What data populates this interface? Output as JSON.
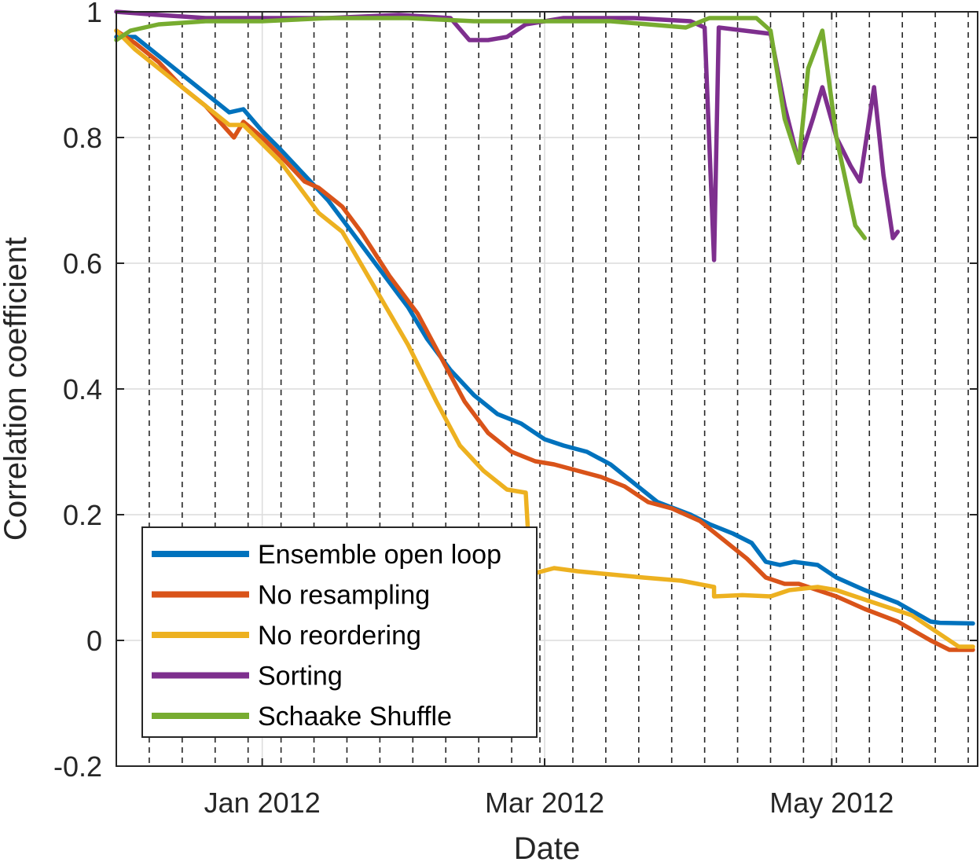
{
  "chart_data": {
    "type": "line",
    "title": "",
    "xlabel": "Date",
    "ylabel": "Correlation coefficient",
    "x_ticks": [
      {
        "label": "Jan 2012",
        "date": "2012-01-01"
      },
      {
        "label": "Mar 2012",
        "date": "2012-03-01"
      },
      {
        "label": "May 2012",
        "date": "2012-05-01"
      }
    ],
    "xlim": [
      "2011-12-01",
      "2012-05-31"
    ],
    "ylim": [
      -0.2,
      1.0
    ],
    "y_ticks": [
      {
        "value": -0.2,
        "label": "-0.2"
      },
      {
        "value": 0,
        "label": "0"
      },
      {
        "value": 0.2,
        "label": "0.2"
      },
      {
        "value": 0.4,
        "label": "0.4"
      },
      {
        "value": 0.6,
        "label": "0.6"
      },
      {
        "value": 0.8,
        "label": "0.8"
      },
      {
        "value": 1.0,
        "label": "1"
      }
    ],
    "grid": true,
    "legend_position": "bottom-left",
    "event_dates": [
      "2011-12-01",
      "2011-12-08",
      "2011-12-15",
      "2011-12-22",
      "2011-12-29",
      "2012-01-05",
      "2012-01-12",
      "2012-01-19",
      "2012-01-26",
      "2012-02-02",
      "2012-02-09",
      "2012-02-16",
      "2012-02-23",
      "2012-02-29",
      "2012-03-07",
      "2012-03-14",
      "2012-03-21",
      "2012-03-28",
      "2012-04-04",
      "2012-04-11",
      "2012-04-18",
      "2012-04-25",
      "2012-05-02",
      "2012-05-09",
      "2012-05-16",
      "2012-05-23",
      "2012-05-30"
    ],
    "series": [
      {
        "name": "Ensemble open loop",
        "color": "#0072BD",
        "points": [
          [
            "2011-12-01",
            0.96
          ],
          [
            "2011-12-05",
            0.96
          ],
          [
            "2011-12-10",
            0.93
          ],
          [
            "2011-12-15",
            0.9
          ],
          [
            "2011-12-20",
            0.87
          ],
          [
            "2011-12-25",
            0.84
          ],
          [
            "2011-12-28",
            0.845
          ],
          [
            "2012-01-01",
            0.81
          ],
          [
            "2012-01-05",
            0.78
          ],
          [
            "2012-01-10",
            0.74
          ],
          [
            "2012-01-15",
            0.7
          ],
          [
            "2012-01-20",
            0.65
          ],
          [
            "2012-01-25",
            0.6
          ],
          [
            "2012-02-01",
            0.53
          ],
          [
            "2012-02-05",
            0.48
          ],
          [
            "2012-02-10",
            0.43
          ],
          [
            "2012-02-15",
            0.39
          ],
          [
            "2012-02-20",
            0.36
          ],
          [
            "2012-02-25",
            0.345
          ],
          [
            "2012-03-01",
            0.32
          ],
          [
            "2012-03-05",
            0.31
          ],
          [
            "2012-03-10",
            0.3
          ],
          [
            "2012-03-15",
            0.28
          ],
          [
            "2012-03-20",
            0.25
          ],
          [
            "2012-03-25",
            0.22
          ],
          [
            "2012-04-01",
            0.2
          ],
          [
            "2012-04-05",
            0.185
          ],
          [
            "2012-04-10",
            0.17
          ],
          [
            "2012-04-14",
            0.155
          ],
          [
            "2012-04-17",
            0.125
          ],
          [
            "2012-04-20",
            0.12
          ],
          [
            "2012-04-23",
            0.125
          ],
          [
            "2012-04-28",
            0.12
          ],
          [
            "2012-05-02",
            0.1
          ],
          [
            "2012-05-08",
            0.08
          ],
          [
            "2012-05-15",
            0.06
          ],
          [
            "2012-05-22",
            0.03
          ],
          [
            "2012-05-24",
            0.028
          ],
          [
            "2012-05-31",
            0.027
          ]
        ]
      },
      {
        "name": "No resampling",
        "color": "#D95319",
        "points": [
          [
            "2011-12-01",
            0.97
          ],
          [
            "2011-12-05",
            0.95
          ],
          [
            "2011-12-10",
            0.92
          ],
          [
            "2011-12-15",
            0.88
          ],
          [
            "2011-12-20",
            0.85
          ],
          [
            "2011-12-26",
            0.8
          ],
          [
            "2011-12-28",
            0.825
          ],
          [
            "2012-01-01",
            0.8
          ],
          [
            "2012-01-05",
            0.77
          ],
          [
            "2012-01-10",
            0.73
          ],
          [
            "2012-01-13",
            0.72
          ],
          [
            "2012-01-18",
            0.69
          ],
          [
            "2012-01-22",
            0.65
          ],
          [
            "2012-01-28",
            0.58
          ],
          [
            "2012-02-03",
            0.52
          ],
          [
            "2012-02-08",
            0.45
          ],
          [
            "2012-02-13",
            0.38
          ],
          [
            "2012-02-18",
            0.33
          ],
          [
            "2012-02-23",
            0.3
          ],
          [
            "2012-02-28",
            0.285
          ],
          [
            "2012-03-03",
            0.28
          ],
          [
            "2012-03-08",
            0.27
          ],
          [
            "2012-03-13",
            0.26
          ],
          [
            "2012-03-18",
            0.245
          ],
          [
            "2012-03-23",
            0.22
          ],
          [
            "2012-03-28",
            0.21
          ],
          [
            "2012-04-03",
            0.19
          ],
          [
            "2012-04-08",
            0.16
          ],
          [
            "2012-04-13",
            0.13
          ],
          [
            "2012-04-17",
            0.1
          ],
          [
            "2012-04-21",
            0.09
          ],
          [
            "2012-04-24",
            0.09
          ],
          [
            "2012-04-28",
            0.08
          ],
          [
            "2012-05-02",
            0.07
          ],
          [
            "2012-05-08",
            0.05
          ],
          [
            "2012-05-15",
            0.03
          ],
          [
            "2012-05-22",
            0.0
          ],
          [
            "2012-05-26",
            -0.015
          ],
          [
            "2012-05-31",
            -0.015
          ]
        ]
      },
      {
        "name": "No reordering",
        "color": "#EDB120",
        "points": [
          [
            "2011-12-01",
            0.97
          ],
          [
            "2011-12-05",
            0.94
          ],
          [
            "2011-12-10",
            0.91
          ],
          [
            "2011-12-15",
            0.88
          ],
          [
            "2011-12-20",
            0.85
          ],
          [
            "2011-12-25",
            0.82
          ],
          [
            "2011-12-28",
            0.82
          ],
          [
            "2012-01-01",
            0.79
          ],
          [
            "2012-01-05",
            0.76
          ],
          [
            "2012-01-10",
            0.71
          ],
          [
            "2012-01-13",
            0.68
          ],
          [
            "2012-01-18",
            0.65
          ],
          [
            "2012-01-25",
            0.56
          ],
          [
            "2012-02-01",
            0.47
          ],
          [
            "2012-02-07",
            0.38
          ],
          [
            "2012-02-12",
            0.31
          ],
          [
            "2012-02-17",
            0.27
          ],
          [
            "2012-02-22",
            0.24
          ],
          [
            "2012-02-26",
            0.235
          ],
          [
            "2012-02-27",
            0.105
          ],
          [
            "2012-03-03",
            0.115
          ],
          [
            "2012-03-08",
            0.11
          ],
          [
            "2012-03-15",
            0.105
          ],
          [
            "2012-03-22",
            0.1
          ],
          [
            "2012-03-30",
            0.095
          ],
          [
            "2012-04-06",
            0.085
          ],
          [
            "2012-04-06",
            0.07
          ],
          [
            "2012-04-12",
            0.072
          ],
          [
            "2012-04-18",
            0.07
          ],
          [
            "2012-04-22",
            0.08
          ],
          [
            "2012-04-28",
            0.085
          ],
          [
            "2012-05-02",
            0.08
          ],
          [
            "2012-05-10",
            0.06
          ],
          [
            "2012-05-18",
            0.04
          ],
          [
            "2012-05-24",
            0.01
          ],
          [
            "2012-05-28",
            -0.01
          ],
          [
            "2012-05-31",
            -0.01
          ]
        ]
      },
      {
        "name": "Sorting",
        "color": "#7E2F8E",
        "points": [
          [
            "2011-12-01",
            1.0
          ],
          [
            "2011-12-10",
            0.995
          ],
          [
            "2011-12-20",
            0.99
          ],
          [
            "2012-01-01",
            0.99
          ],
          [
            "2012-01-15",
            0.99
          ],
          [
            "2012-01-30",
            0.995
          ],
          [
            "2012-02-10",
            0.99
          ],
          [
            "2012-02-14",
            0.955
          ],
          [
            "2012-02-18",
            0.955
          ],
          [
            "2012-02-22",
            0.96
          ],
          [
            "2012-02-26",
            0.98
          ],
          [
            "2012-03-05",
            0.99
          ],
          [
            "2012-03-20",
            0.99
          ],
          [
            "2012-04-01",
            0.985
          ],
          [
            "2012-04-04",
            0.975
          ],
          [
            "2012-04-06",
            0.605
          ],
          [
            "2012-04-07",
            0.975
          ],
          [
            "2012-04-18",
            0.965
          ],
          [
            "2012-04-21",
            0.85
          ],
          [
            "2012-04-24",
            0.76
          ],
          [
            "2012-04-27",
            0.83
          ],
          [
            "2012-04-29",
            0.88
          ],
          [
            "2012-05-02",
            0.8
          ],
          [
            "2012-05-05",
            0.755
          ],
          [
            "2012-05-07",
            0.73
          ],
          [
            "2012-05-10",
            0.88
          ],
          [
            "2012-05-12",
            0.74
          ],
          [
            "2012-05-14",
            0.64
          ],
          [
            "2012-05-15",
            0.65
          ]
        ]
      },
      {
        "name": "Schaake Shuffle",
        "color": "#77AC30",
        "points": [
          [
            "2011-12-01",
            0.955
          ],
          [
            "2011-12-04",
            0.97
          ],
          [
            "2011-12-10",
            0.98
          ],
          [
            "2011-12-20",
            0.985
          ],
          [
            "2012-01-01",
            0.985
          ],
          [
            "2012-01-15",
            0.99
          ],
          [
            "2012-02-01",
            0.99
          ],
          [
            "2012-02-15",
            0.985
          ],
          [
            "2012-03-01",
            0.985
          ],
          [
            "2012-03-15",
            0.985
          ],
          [
            "2012-03-31",
            0.975
          ],
          [
            "2012-04-05",
            0.99
          ],
          [
            "2012-04-15",
            0.99
          ],
          [
            "2012-04-18",
            0.97
          ],
          [
            "2012-04-21",
            0.83
          ],
          [
            "2012-04-24",
            0.76
          ],
          [
            "2012-04-26",
            0.91
          ],
          [
            "2012-04-29",
            0.97
          ],
          [
            "2012-05-02",
            0.8
          ],
          [
            "2012-05-06",
            0.66
          ],
          [
            "2012-05-08",
            0.64
          ]
        ]
      }
    ]
  }
}
